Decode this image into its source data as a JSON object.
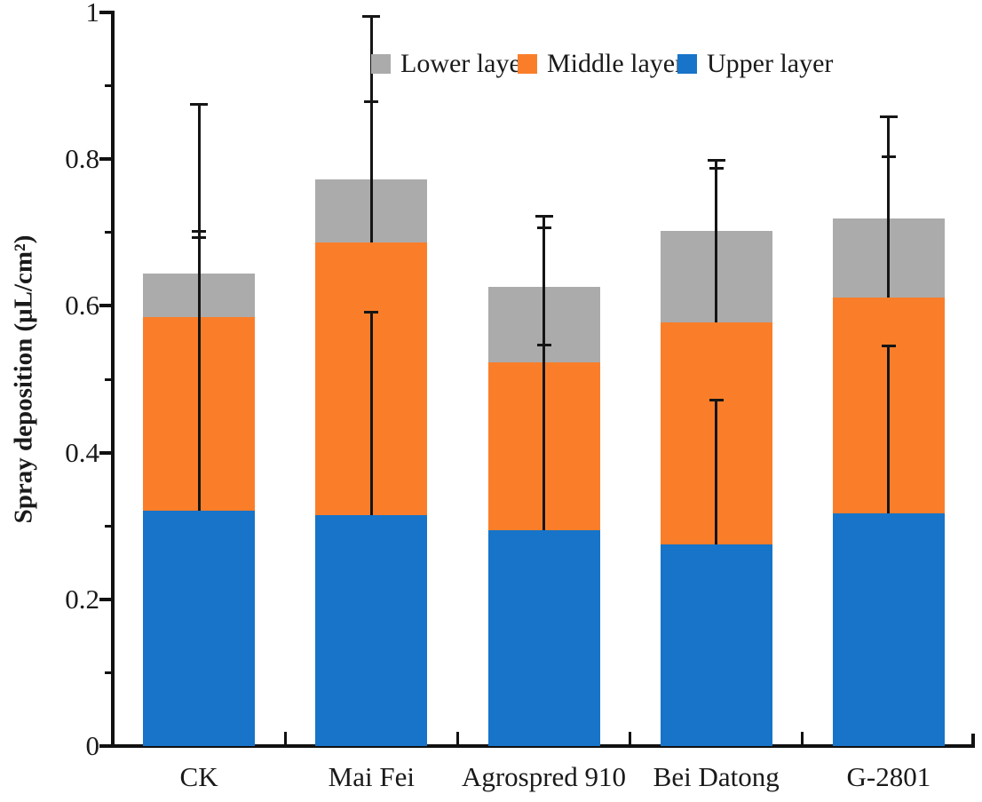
{
  "chart_data": {
    "type": "bar",
    "stacked": true,
    "title": "",
    "xlabel": "",
    "ylabel": "Spray deposition (μL/cm²)",
    "ylim": [
      0,
      1
    ],
    "yticks": [
      0,
      0.2,
      0.4,
      0.6,
      0.8,
      1
    ],
    "ytick_labels": [
      "0",
      "0.2",
      "0.4",
      "0.6",
      "0.8",
      "1"
    ],
    "yticks_minor": [
      0.1,
      0.3,
      0.5,
      0.7,
      0.9
    ],
    "grid": false,
    "legend_position": "top-inside",
    "categories": [
      "CK",
      "Mai Fei",
      "Agrospred 910",
      "Bei Datong",
      "G-2801"
    ],
    "series": [
      {
        "name": "Upper layer",
        "color": "#1774c8",
        "values": [
          0.321,
          0.315,
          0.294,
          0.275,
          0.317
        ]
      },
      {
        "name": "Middle layer",
        "color": "#fa7e2a",
        "values": [
          0.264,
          0.371,
          0.229,
          0.302,
          0.294
        ]
      },
      {
        "name": "Lower layer",
        "color": "#ababab",
        "values": [
          0.059,
          0.086,
          0.103,
          0.125,
          0.108
        ]
      }
    ],
    "stack_totals": [
      0.644,
      0.772,
      0.626,
      0.702,
      0.719
    ],
    "error_whiskers": [
      [
        {
          "top": 0.875,
          "bottom": 0.321,
          "caps": [
            0.875,
            0.702,
            0.693
          ]
        }
      ],
      [
        {
          "top": 0.994,
          "bottom": 0.686,
          "caps": [
            0.994,
            0.878
          ]
        },
        {
          "top": 0.591,
          "bottom": 0.315,
          "caps": [
            0.591
          ]
        }
      ],
      [
        {
          "top": 0.722,
          "bottom": 0.294,
          "caps": [
            0.722,
            0.706,
            0.547
          ]
        }
      ],
      [
        {
          "top": 0.798,
          "bottom": 0.577,
          "caps": [
            0.798,
            0.787
          ]
        },
        {
          "top": 0.472,
          "bottom": 0.275,
          "caps": [
            0.472
          ]
        }
      ],
      [
        {
          "top": 0.858,
          "bottom": 0.611,
          "caps": [
            0.858,
            0.803
          ]
        },
        {
          "top": 0.545,
          "bottom": 0.317,
          "caps": [
            0.545
          ]
        }
      ]
    ],
    "legend": [
      {
        "label": "Lower layer",
        "color": "#ababab"
      },
      {
        "label": "Middle layer",
        "color": "#fa7e2a"
      },
      {
        "label": "Upper layer",
        "color": "#1774c8"
      }
    ]
  }
}
